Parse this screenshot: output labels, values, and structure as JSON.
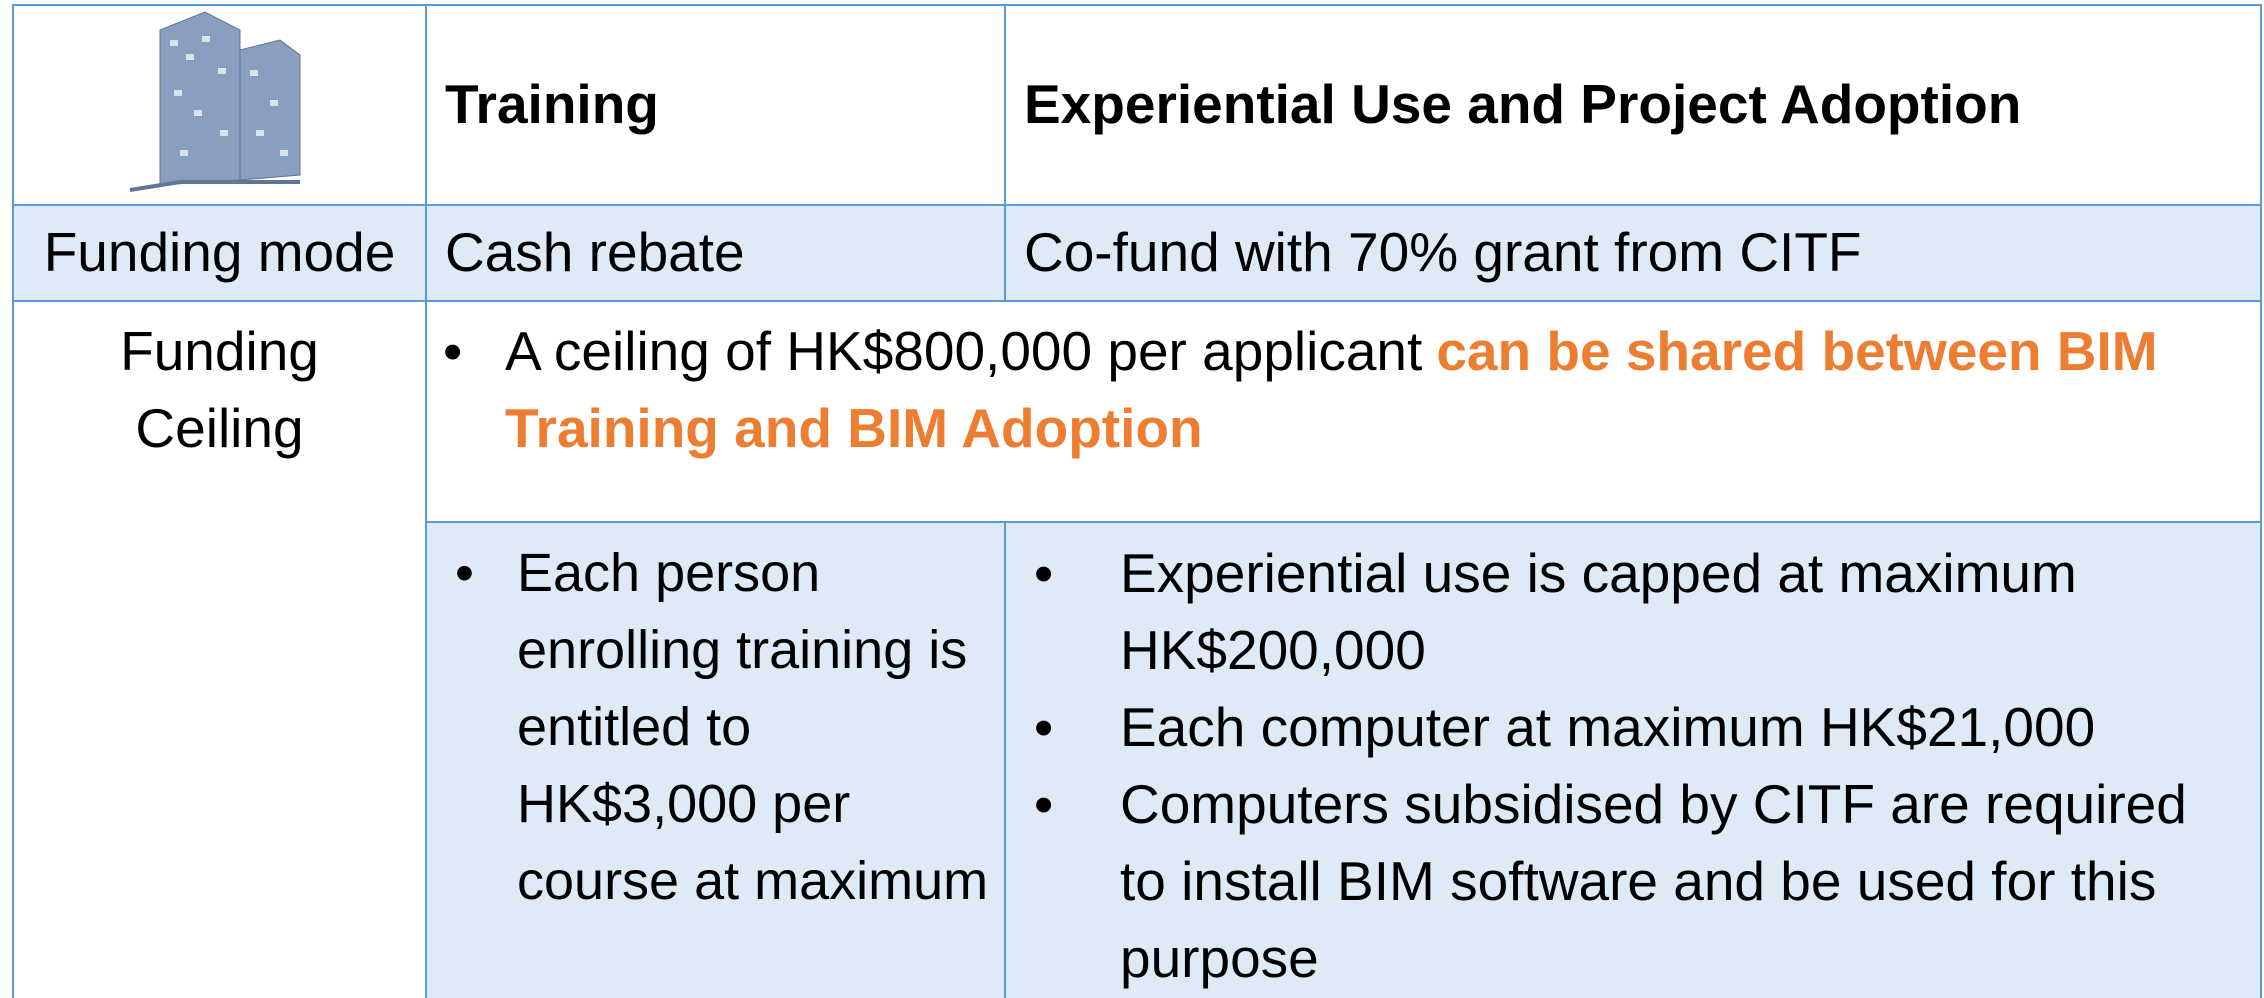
{
  "header": {
    "columns": [
      "Training",
      "Experiential Use and Project Adoption"
    ]
  },
  "rows": [
    {
      "label": "Funding mode",
      "cells": [
        "Cash rebate",
        "Co-fund with 70% grant from CITF"
      ]
    },
    {
      "label": "Funding Ceiling",
      "shared": {
        "text": "A ceiling of HK$800,000 per applicant",
        "highlight": "can be shared between BIM Training and BIM Adoption"
      },
      "training": [
        "Each person enrolling training is entitled to HK$3,000 per course at maximum"
      ],
      "adoption": [
        "Experiential use is capped at maximum HK$200,000",
        "Each computer at maximum HK$21,000",
        "Computers subsidised by CITF are required to install BIM software and be used for this purpose"
      ]
    }
  ]
}
